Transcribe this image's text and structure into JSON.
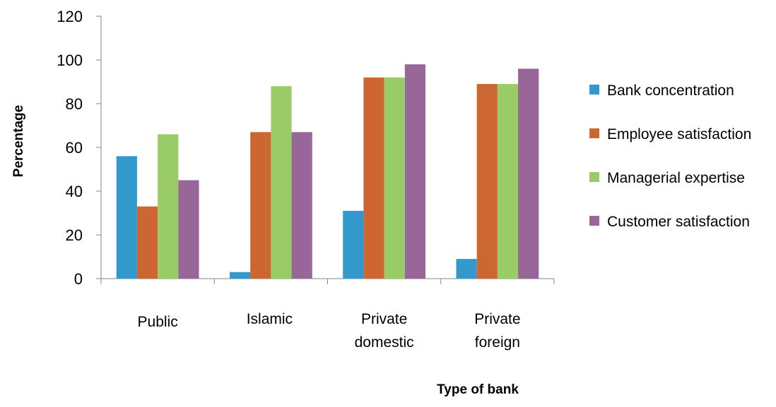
{
  "chart_data": {
    "type": "bar",
    "categories": [
      [
        "Public"
      ],
      [
        "Islamic"
      ],
      [
        "Private",
        "domestic"
      ],
      [
        "Private",
        "foreign"
      ]
    ],
    "series": [
      {
        "name": "Bank concentration",
        "values": [
          56,
          3,
          31,
          9
        ],
        "color": "#3399cc"
      },
      {
        "name": "Employee satisfaction",
        "values": [
          33,
          67,
          92,
          89
        ],
        "color": "#cc6633"
      },
      {
        "name": "Managerial expertise",
        "values": [
          66,
          88,
          92,
          89
        ],
        "color": "#99cc66"
      },
      {
        "name": "Customer satisfaction",
        "values": [
          45,
          67,
          98,
          96
        ],
        "color": "#996699"
      }
    ],
    "ylabel": "Percentage",
    "xlabel": "Type of bank",
    "ylim": [
      0,
      120
    ],
    "yticks": [
      0,
      20,
      40,
      60,
      80,
      100,
      120
    ],
    "grid": false,
    "legend_position": "right"
  }
}
